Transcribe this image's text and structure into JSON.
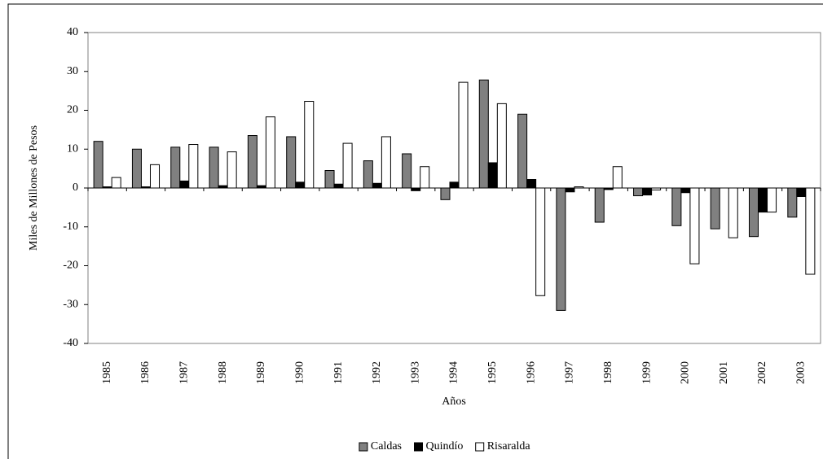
{
  "chart_data": {
    "type": "bar",
    "y_label": "Miles de Millones de Pesos",
    "x_label": "Años",
    "categories": [
      "1985",
      "1986",
      "1987",
      "1988",
      "1989",
      "1990",
      "1991",
      "1992",
      "1993",
      "1994",
      "1995",
      "1996",
      "1997",
      "1998",
      "1999",
      "2000",
      "2001",
      "2002",
      "2003"
    ],
    "series": [
      {
        "name": "Caldas",
        "color": "#808080",
        "values": [
          12,
          10,
          10.5,
          10.5,
          13.5,
          13.2,
          4.5,
          7,
          8.8,
          -3,
          27.8,
          19,
          -31.5,
          -8.8,
          -2,
          -9.7,
          -10.5,
          -12.5,
          -7.5
        ]
      },
      {
        "name": "Quindío",
        "color": "#000000",
        "values": [
          0.3,
          0.3,
          1.8,
          0.6,
          0.6,
          1.5,
          1,
          1.2,
          -0.7,
          1.5,
          6.5,
          2.2,
          -1,
          -0.4,
          -1.8,
          -1.2,
          0,
          -6.2,
          -2.2
        ]
      },
      {
        "name": "Risaralda",
        "color": "#ffffff",
        "values": [
          2.7,
          6,
          11.2,
          9.3,
          18.3,
          22.3,
          11.5,
          13.2,
          5.5,
          27.2,
          21.7,
          -27.7,
          0.3,
          5.5,
          -0.5,
          -19.5,
          -12.8,
          -6.2,
          -22.2
        ]
      }
    ],
    "ylim": [
      -40,
      40
    ],
    "yticks": [
      -40,
      -30,
      -20,
      -10,
      0,
      10,
      20,
      30,
      40
    ],
    "grid": false,
    "legend": "bottom"
  }
}
